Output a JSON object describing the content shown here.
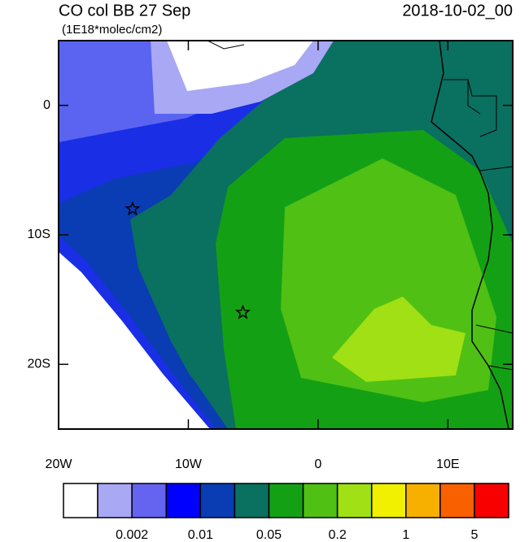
{
  "chart_data": {
    "type": "contour-map",
    "title": "CO col BB 27 Sep",
    "subtitle": "(1E18*molec/cm2)",
    "date": "2018-10-02_00",
    "xlim": [
      -20,
      15
    ],
    "ylim": [
      -25,
      5
    ],
    "xticks": [
      {
        "value": -20,
        "label": "20W"
      },
      {
        "value": -10,
        "label": "10W"
      },
      0,
      {
        "value": 10,
        "label": "10E"
      }
    ],
    "yticks": [
      0,
      {
        "value": -10,
        "label": "10S"
      },
      {
        "value": -20,
        "label": "20S"
      }
    ],
    "markers": {
      "lon": [
        -14.3,
        -5.8
      ],
      "lat": [
        -8,
        -16
      ]
    },
    "colorbar": {
      "colors": [
        "#ffffff",
        "#a8a8f4",
        "#6464f0",
        "#0000ff",
        "#0a3cb4",
        "#0a7060",
        "#14a014",
        "#50c014",
        "#a0e014",
        "#f0f000",
        "#f8b000",
        "#f86000",
        "#f80000"
      ],
      "labels": [
        0.002,
        0.01,
        0.05,
        0.2,
        1,
        5
      ]
    }
  }
}
